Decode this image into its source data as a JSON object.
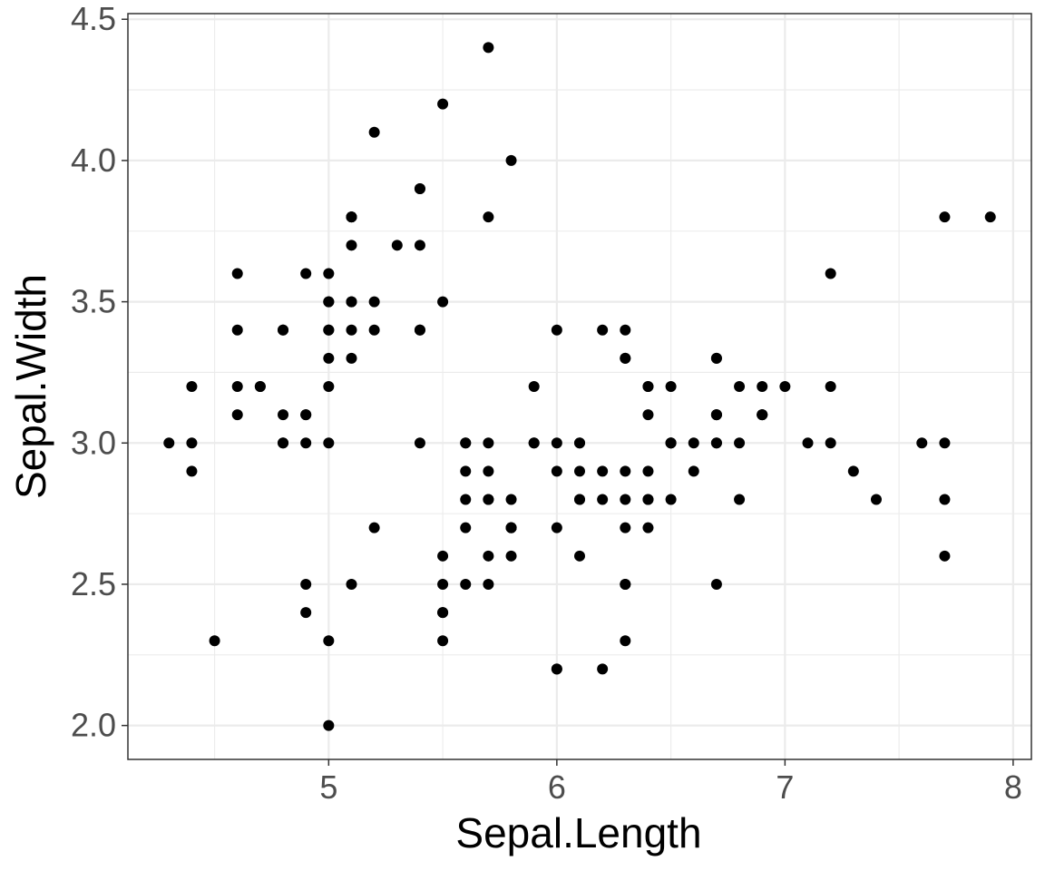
{
  "chart_data": {
    "type": "scatter",
    "title": "",
    "xlabel": "Sepal.Length",
    "ylabel": "Sepal.Width",
    "xlim": [
      4.12,
      8.08
    ],
    "ylim": [
      1.88,
      4.52
    ],
    "x_ticks": [
      5,
      6,
      7,
      8
    ],
    "y_ticks": [
      2.0,
      2.5,
      3.0,
      3.5,
      4.0,
      4.5
    ],
    "x_tick_labels": [
      "5",
      "6",
      "7",
      "8"
    ],
    "y_tick_labels": [
      "2.0",
      "2.5",
      "3.0",
      "3.5",
      "4.0",
      "4.5"
    ],
    "grid": true,
    "point_color": "#000000",
    "panel_border_color": "#333333",
    "grid_color": "#ebebeb",
    "points": [
      [
        5.1,
        3.5
      ],
      [
        4.9,
        3.0
      ],
      [
        4.7,
        3.2
      ],
      [
        4.6,
        3.1
      ],
      [
        5.0,
        3.6
      ],
      [
        5.4,
        3.9
      ],
      [
        4.6,
        3.4
      ],
      [
        5.0,
        3.4
      ],
      [
        4.4,
        2.9
      ],
      [
        4.9,
        3.1
      ],
      [
        5.4,
        3.7
      ],
      [
        4.8,
        3.4
      ],
      [
        4.8,
        3.0
      ],
      [
        4.3,
        3.0
      ],
      [
        5.8,
        4.0
      ],
      [
        5.7,
        4.4
      ],
      [
        5.4,
        3.9
      ],
      [
        5.1,
        3.5
      ],
      [
        5.7,
        3.8
      ],
      [
        5.1,
        3.8
      ],
      [
        5.4,
        3.4
      ],
      [
        5.1,
        3.7
      ],
      [
        4.6,
        3.6
      ],
      [
        5.1,
        3.3
      ],
      [
        4.8,
        3.4
      ],
      [
        5.0,
        3.0
      ],
      [
        5.0,
        3.4
      ],
      [
        5.2,
        3.5
      ],
      [
        5.2,
        3.4
      ],
      [
        4.7,
        3.2
      ],
      [
        4.8,
        3.1
      ],
      [
        5.4,
        3.4
      ],
      [
        5.2,
        4.1
      ],
      [
        5.5,
        4.2
      ],
      [
        4.9,
        3.1
      ],
      [
        5.0,
        3.2
      ],
      [
        5.5,
        3.5
      ],
      [
        4.9,
        3.6
      ],
      [
        4.4,
        3.0
      ],
      [
        5.1,
        3.4
      ],
      [
        5.0,
        3.5
      ],
      [
        4.5,
        2.3
      ],
      [
        4.4,
        3.2
      ],
      [
        5.0,
        3.5
      ],
      [
        5.1,
        3.8
      ],
      [
        4.8,
        3.0
      ],
      [
        5.1,
        3.8
      ],
      [
        4.6,
        3.2
      ],
      [
        5.3,
        3.7
      ],
      [
        5.0,
        3.3
      ],
      [
        7.0,
        3.2
      ],
      [
        6.4,
        3.2
      ],
      [
        6.9,
        3.1
      ],
      [
        5.5,
        2.3
      ],
      [
        6.5,
        2.8
      ],
      [
        5.7,
        2.8
      ],
      [
        6.3,
        3.3
      ],
      [
        4.9,
        2.4
      ],
      [
        6.6,
        2.9
      ],
      [
        5.2,
        2.7
      ],
      [
        5.0,
        2.0
      ],
      [
        5.9,
        3.0
      ],
      [
        6.0,
        2.2
      ],
      [
        6.1,
        2.9
      ],
      [
        5.6,
        2.9
      ],
      [
        6.7,
        3.1
      ],
      [
        5.6,
        3.0
      ],
      [
        5.8,
        2.7
      ],
      [
        6.2,
        2.2
      ],
      [
        5.6,
        2.5
      ],
      [
        5.9,
        3.2
      ],
      [
        6.1,
        2.8
      ],
      [
        6.3,
        2.5
      ],
      [
        6.1,
        2.8
      ],
      [
        6.4,
        2.9
      ],
      [
        6.6,
        3.0
      ],
      [
        6.8,
        2.8
      ],
      [
        6.7,
        3.0
      ],
      [
        6.0,
        2.9
      ],
      [
        5.7,
        2.6
      ],
      [
        5.5,
        2.4
      ],
      [
        5.5,
        2.4
      ],
      [
        5.8,
        2.7
      ],
      [
        6.0,
        2.7
      ],
      [
        5.4,
        3.0
      ],
      [
        6.0,
        3.4
      ],
      [
        6.7,
        3.1
      ],
      [
        6.3,
        2.3
      ],
      [
        5.6,
        3.0
      ],
      [
        5.5,
        2.5
      ],
      [
        5.5,
        2.6
      ],
      [
        6.1,
        3.0
      ],
      [
        5.8,
        2.6
      ],
      [
        5.0,
        2.3
      ],
      [
        5.6,
        2.7
      ],
      [
        5.7,
        3.0
      ],
      [
        5.7,
        2.9
      ],
      [
        6.2,
        2.9
      ],
      [
        5.1,
        2.5
      ],
      [
        5.7,
        2.8
      ],
      [
        6.3,
        3.3
      ],
      [
        5.8,
        2.7
      ],
      [
        7.1,
        3.0
      ],
      [
        6.3,
        2.9
      ],
      [
        6.5,
        3.0
      ],
      [
        7.6,
        3.0
      ],
      [
        4.9,
        2.5
      ],
      [
        7.3,
        2.9
      ],
      [
        6.7,
        2.5
      ],
      [
        7.2,
        3.6
      ],
      [
        6.5,
        3.2
      ],
      [
        6.4,
        2.7
      ],
      [
        6.8,
        3.0
      ],
      [
        5.7,
        2.5
      ],
      [
        5.8,
        2.8
      ],
      [
        6.4,
        3.2
      ],
      [
        6.5,
        3.0
      ],
      [
        7.7,
        3.8
      ],
      [
        7.7,
        2.6
      ],
      [
        6.0,
        2.2
      ],
      [
        6.9,
        3.2
      ],
      [
        5.6,
        2.8
      ],
      [
        7.7,
        2.8
      ],
      [
        6.3,
        2.7
      ],
      [
        6.7,
        3.3
      ],
      [
        7.2,
        3.2
      ],
      [
        6.2,
        2.8
      ],
      [
        6.1,
        3.0
      ],
      [
        6.4,
        2.8
      ],
      [
        7.2,
        3.0
      ],
      [
        7.4,
        2.8
      ],
      [
        7.9,
        3.8
      ],
      [
        6.4,
        2.8
      ],
      [
        6.3,
        2.8
      ],
      [
        6.1,
        2.6
      ],
      [
        7.7,
        3.0
      ],
      [
        6.3,
        3.4
      ],
      [
        6.4,
        3.1
      ],
      [
        6.0,
        3.0
      ],
      [
        6.9,
        3.1
      ],
      [
        6.7,
        3.1
      ],
      [
        6.9,
        3.1
      ],
      [
        5.8,
        2.7
      ],
      [
        6.8,
        3.2
      ],
      [
        6.7,
        3.3
      ],
      [
        6.7,
        3.0
      ],
      [
        6.3,
        2.5
      ],
      [
        6.5,
        3.0
      ],
      [
        6.2,
        3.4
      ],
      [
        5.9,
        3.0
      ]
    ]
  }
}
